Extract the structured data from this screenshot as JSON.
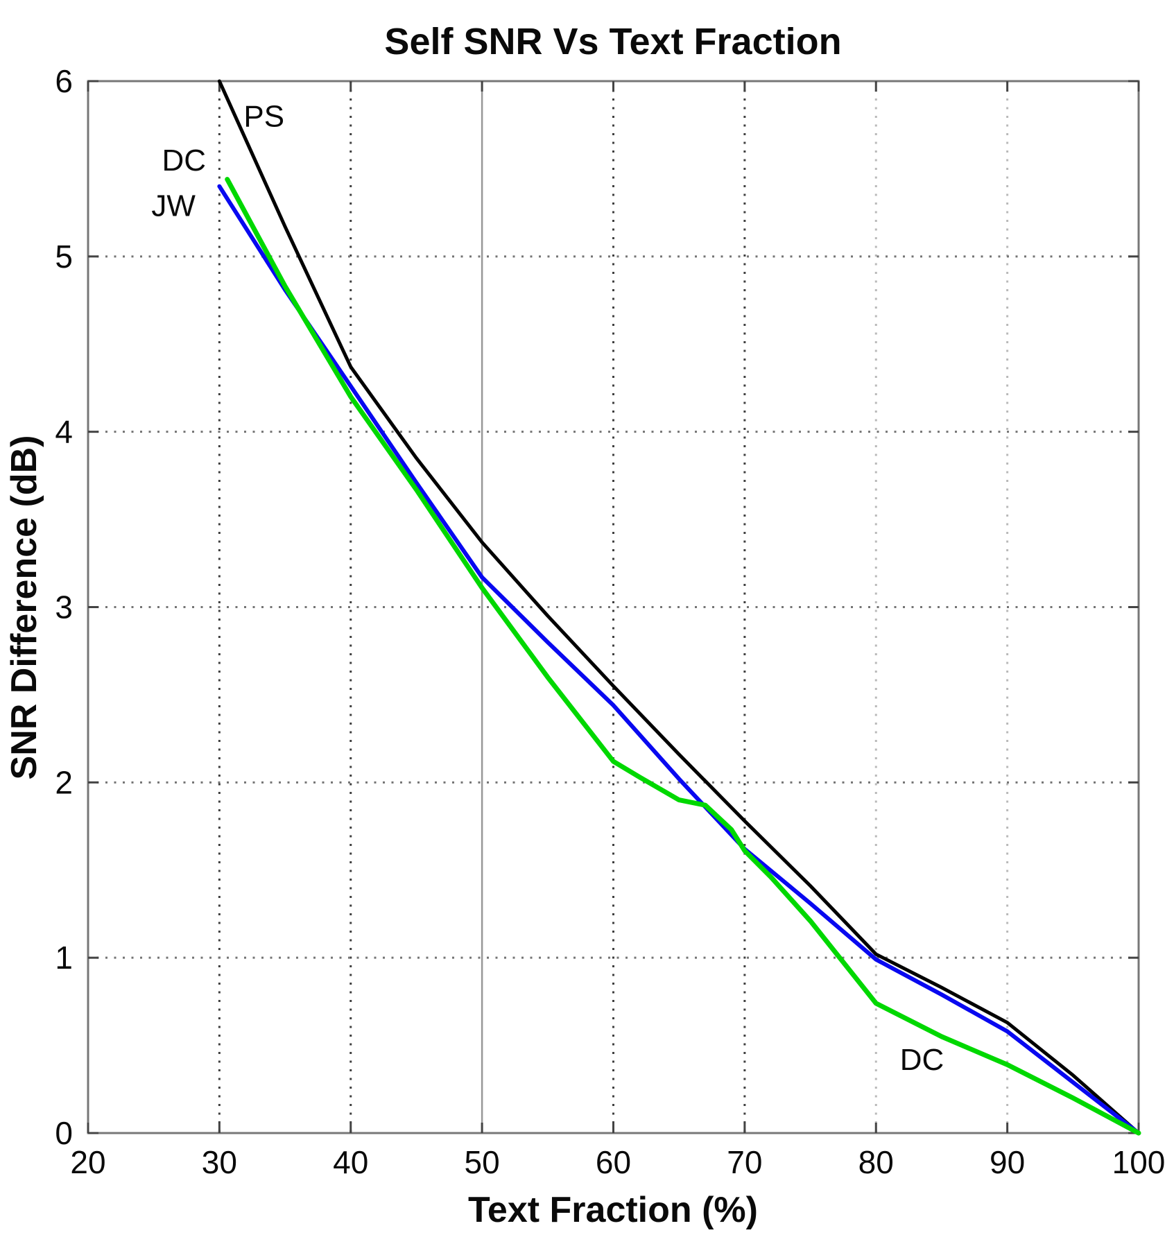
{
  "chart_data": {
    "type": "line",
    "title": "Self SNR Vs Text Fraction",
    "xlabel": "Text Fraction (%)",
    "ylabel": "SNR Difference (dB)",
    "xlim": [
      20,
      100
    ],
    "ylim": [
      0,
      6
    ],
    "xticks": [
      20,
      30,
      40,
      50,
      60,
      70,
      80,
      90,
      100
    ],
    "yticks": [
      0,
      1,
      2,
      3,
      4,
      5,
      6
    ],
    "grid": {
      "horizontal": "dotted",
      "vertical": "dotted",
      "solid_vertical_at": 50,
      "light_vertical_from": 80
    },
    "legend_position": "none",
    "colors": {
      "axis": "#777777",
      "tick": "#444444",
      "grid_dark": "#3f3f3f",
      "grid_mid": "#747474",
      "grid_light": "#b9b9b9",
      "grid_solid": "#979797",
      "text": "#0a0a0a"
    },
    "series": [
      {
        "name": "PS",
        "color": "#000000",
        "width": 5,
        "points": [
          [
            30,
            6.0
          ],
          [
            35,
            5.17
          ],
          [
            40,
            4.37
          ],
          [
            45,
            3.85
          ],
          [
            50,
            3.37
          ],
          [
            55,
            2.95
          ],
          [
            60,
            2.55
          ],
          [
            65,
            2.16
          ],
          [
            70,
            1.78
          ],
          [
            75,
            1.41
          ],
          [
            80,
            1.02
          ],
          [
            85,
            0.83
          ],
          [
            90,
            0.63
          ],
          [
            95,
            0.33
          ],
          [
            100,
            0.0
          ]
        ]
      },
      {
        "name": "JW",
        "color": "#0808f0",
        "width": 6,
        "points": [
          [
            30,
            5.4
          ],
          [
            35,
            4.81
          ],
          [
            40,
            4.26
          ],
          [
            45,
            3.71
          ],
          [
            50,
            3.17
          ],
          [
            55,
            2.8
          ],
          [
            60,
            2.44
          ],
          [
            65,
            2.02
          ],
          [
            70,
            1.62
          ],
          [
            75,
            1.31
          ],
          [
            80,
            0.99
          ],
          [
            85,
            0.79
          ],
          [
            90,
            0.58
          ],
          [
            95,
            0.29
          ],
          [
            100,
            0.0
          ]
        ]
      },
      {
        "name": "DC",
        "color": "#00d800",
        "width": 7,
        "points": [
          [
            30.6,
            5.44
          ],
          [
            35,
            4.83
          ],
          [
            40,
            4.2
          ],
          [
            45,
            3.67
          ],
          [
            50,
            3.11
          ],
          [
            55,
            2.6
          ],
          [
            60,
            2.12
          ],
          [
            62,
            2.03
          ],
          [
            65,
            1.9
          ],
          [
            67,
            1.87
          ],
          [
            69,
            1.73
          ],
          [
            70,
            1.61
          ],
          [
            72,
            1.46
          ],
          [
            75,
            1.21
          ],
          [
            80,
            0.74
          ],
          [
            85,
            0.55
          ],
          [
            90,
            0.39
          ],
          [
            95,
            0.2
          ],
          [
            100,
            0.0
          ]
        ]
      }
    ],
    "annotations": [
      {
        "label": "PS",
        "x": 33.4,
        "y": 5.8
      },
      {
        "label": "DC",
        "x": 27.3,
        "y": 5.55
      },
      {
        "label": "JW",
        "x": 26.5,
        "y": 5.29
      },
      {
        "label": "DC",
        "x": 83.5,
        "y": 0.42
      }
    ]
  }
}
